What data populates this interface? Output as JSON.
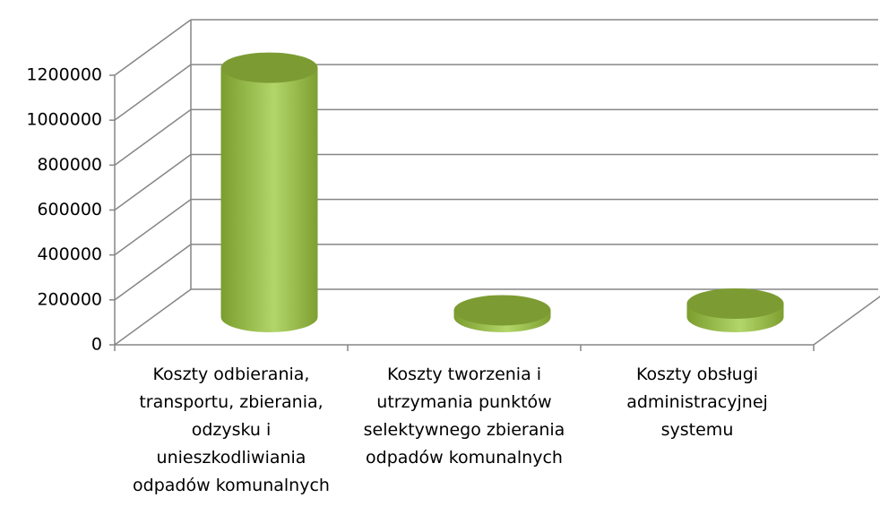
{
  "chart_data": {
    "type": "bar",
    "style": "3d-cylinder",
    "categories": [
      "Koszty odbierania, transportu, zbierania, odzysku i unieszkodliwiania odpadów komunalnych",
      "Koszty tworzenia i utrzymania punktów selektywnego zbierania odpadów komunalnych",
      "Koszty obsługi administracyjnej systemu"
    ],
    "values": [
      1110000,
      30000,
      60000
    ],
    "color": "#8db33a",
    "ylim": [
      0,
      1200000
    ],
    "yticks": [
      0,
      200000,
      400000,
      600000,
      800000,
      1000000,
      1200000
    ],
    "grid": true
  }
}
